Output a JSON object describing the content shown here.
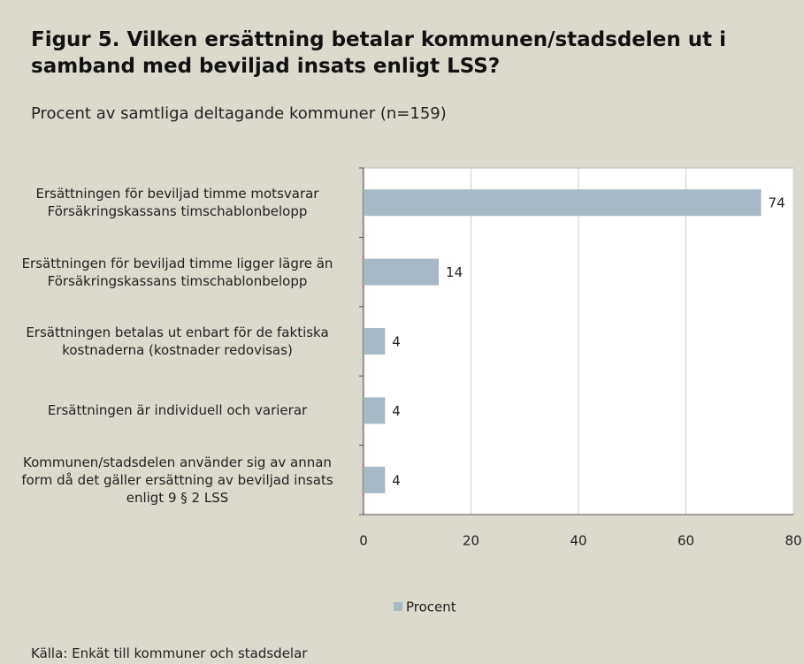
{
  "chart_data": {
    "type": "bar",
    "orientation": "horizontal",
    "title": "Figur 5. Vilken ersättning betalar kommunen/stadsdelen ut i samband med beviljad insats enligt LSS?",
    "subtitle": "Procent av samtliga deltagande kommuner (n=159)",
    "source": "Källa:  Enkät till kommuner och stadsdelar",
    "categories": [
      "Ersättningen för beviljad timme motsvarar Försäkringskassans timschablonbelopp",
      "Ersättningen för beviljad timme ligger lägre än Försäkringskassans timschablonbelopp",
      "Ersättningen betalas ut enbart för de faktiska kostnaderna (kostnader redovisas)",
      "Ersättningen är individuell och varierar",
      "Kommunen/stadsdelen använder sig av annan form då det gäller ersättning av beviljad insats enligt 9 § 2 LSS"
    ],
    "series": [
      {
        "name": "Procent",
        "color": "#a7b9c4",
        "values": [
          74,
          14,
          4,
          4,
          4
        ]
      }
    ],
    "xlim": [
      0,
      80
    ],
    "xticks": [
      0,
      20,
      40,
      60,
      80
    ],
    "grid": true,
    "legend": "bottom"
  }
}
